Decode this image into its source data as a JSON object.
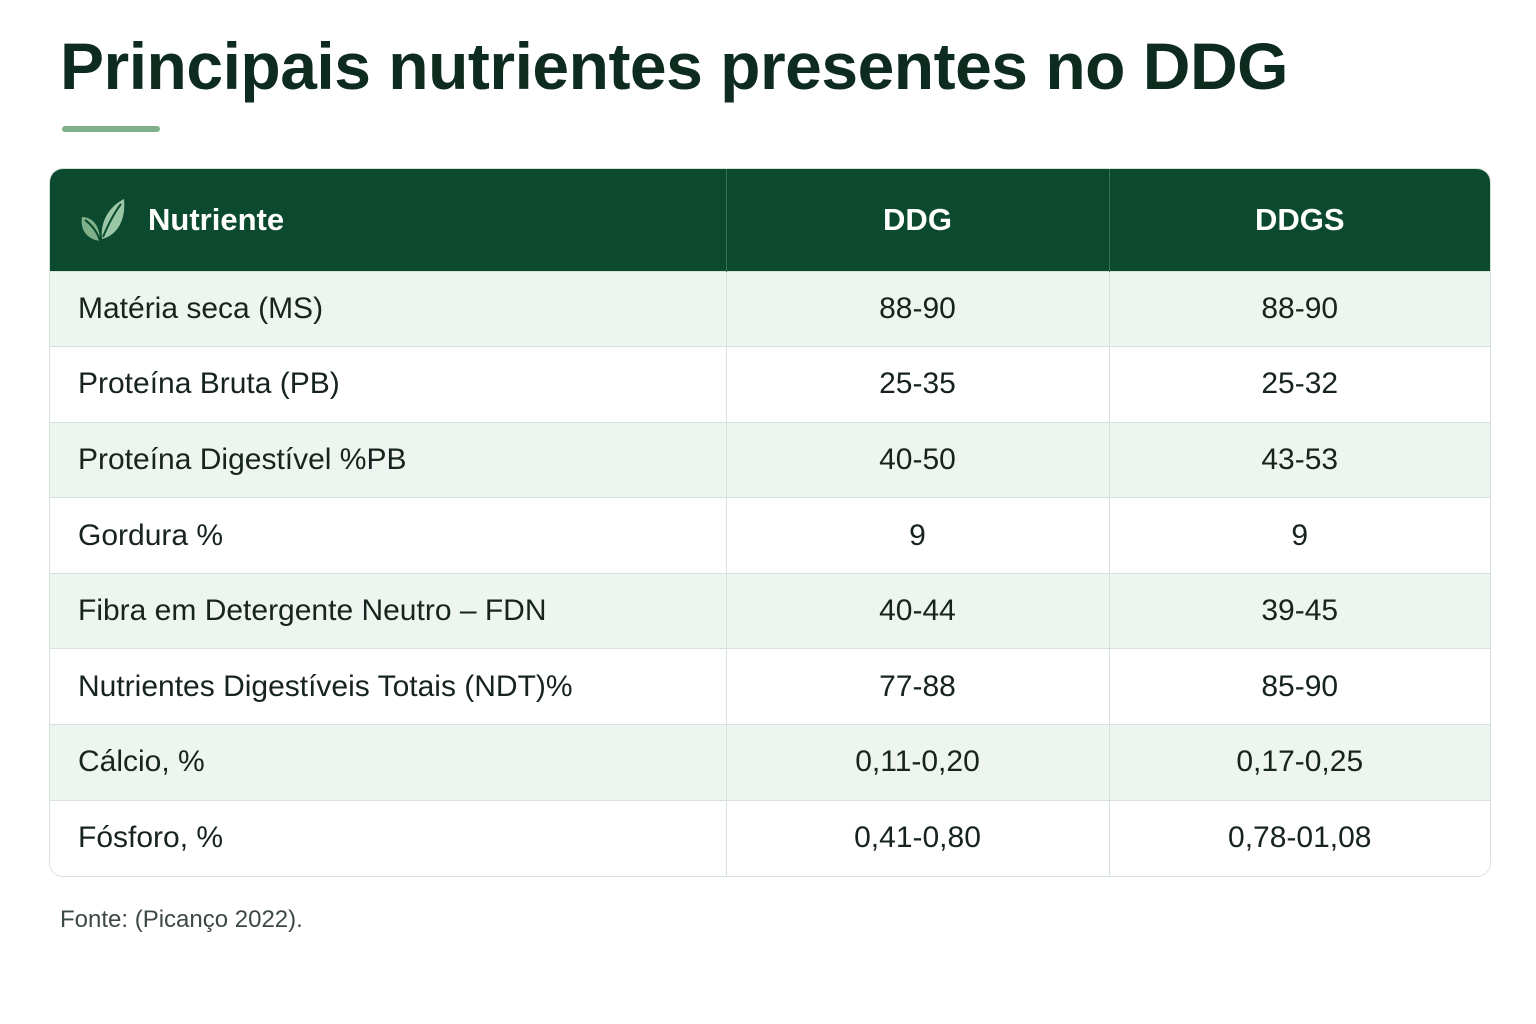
{
  "title": "Principais nutrientes presentes no DDG",
  "table": {
    "headers": {
      "nutriente": "Nutriente",
      "ddg": "DDG",
      "ddgs": "DDGS"
    },
    "rows": [
      {
        "nutriente": "Matéria seca (MS)",
        "ddg": "88-90",
        "ddgs": "88-90"
      },
      {
        "nutriente": "Proteína Bruta (PB)",
        "ddg": "25-35",
        "ddgs": "25-32"
      },
      {
        "nutriente": "Proteína Digestível %PB",
        "ddg": "40-50",
        "ddgs": "43-53"
      },
      {
        "nutriente": "Gordura %",
        "ddg": "9",
        "ddgs": "9"
      },
      {
        "nutriente": "Fibra em Detergente Neutro – FDN",
        "ddg": "40-44",
        "ddgs": "39-45"
      },
      {
        "nutriente": "Nutrientes Digestíveis Totais (NDT)%",
        "ddg": "77-88",
        "ddgs": "85-90"
      },
      {
        "nutriente": "Cálcio, %",
        "ddg": "0,11-0,20",
        "ddgs": "0,17-0,25"
      },
      {
        "nutriente": "Fósforo, %",
        "ddg": "0,41-0,80",
        "ddgs": "0,78-01,08"
      }
    ]
  },
  "source": "Fonte: (Picanço 2022).",
  "icons": {
    "header_icon": "leaf-icon"
  },
  "colors": {
    "header_bg": "#0b4a2f",
    "title": "#0d2b1f",
    "accent": "#7fb08a",
    "row_alt": "#eef4f0"
  }
}
